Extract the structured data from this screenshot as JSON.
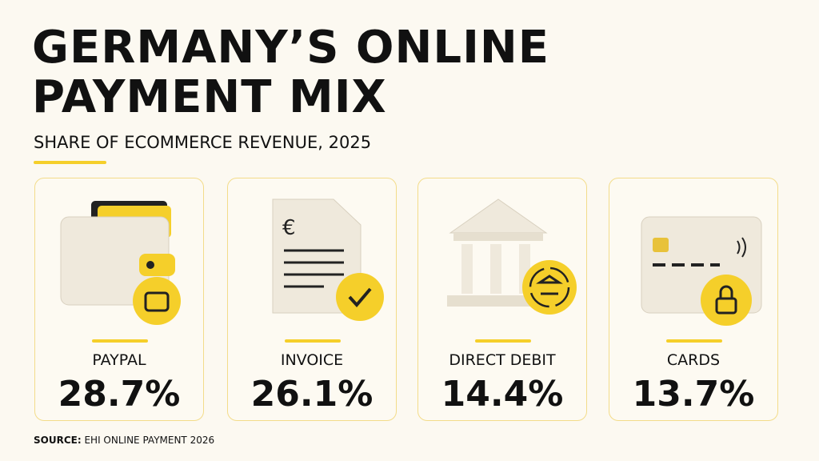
{
  "header": {
    "title_lines": [
      "GERMANY’S ONLINE",
      "PAYMENT MIX"
    ],
    "subtitle": "SHARE OF ECOMMERCE REVENUE, 2025"
  },
  "cards": [
    {
      "label": "PAYPAL",
      "value": "28.7%"
    },
    {
      "label": "INVOICE",
      "value": "26.1%"
    },
    {
      "label": "DIRECT DEBIT",
      "value": "14.4%"
    },
    {
      "label": "CARDS",
      "value": "13.7%"
    }
  ],
  "source": {
    "prefix": "SOURCE:",
    "text": "EHI ONLINE PAYMENT 2026"
  }
}
